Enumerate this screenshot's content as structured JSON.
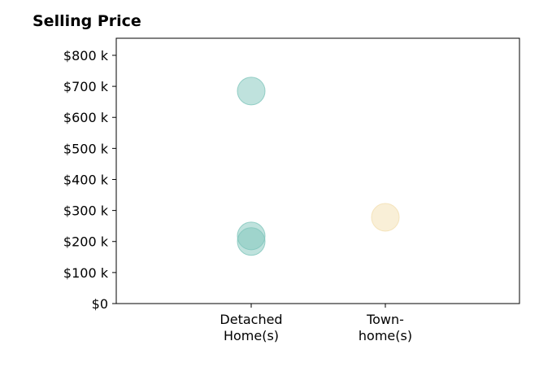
{
  "chart_data": {
    "type": "scatter",
    "title": "Selling Price",
    "xlabel": "",
    "ylabel": "",
    "categories": [
      [
        "Detached",
        "Home(s)"
      ],
      [
        "Town-",
        "home(s)"
      ]
    ],
    "y_ticks": [
      {
        "value": 0,
        "label": "$0"
      },
      {
        "value": 100000,
        "label": "$100 k"
      },
      {
        "value": 200000,
        "label": "$200 k"
      },
      {
        "value": 300000,
        "label": "$300 k"
      },
      {
        "value": 400000,
        "label": "$400 k"
      },
      {
        "value": 500000,
        "label": "$500 k"
      },
      {
        "value": 600000,
        "label": "$600 k"
      },
      {
        "value": 700000,
        "label": "$700 k"
      },
      {
        "value": 800000,
        "label": "$800 k"
      }
    ],
    "ylim": [
      0,
      855000
    ],
    "grid": false,
    "legend": "none",
    "points": [
      {
        "category": 0,
        "y": 685000,
        "color": "#80c6bc"
      },
      {
        "category": 0,
        "y": 218000,
        "color": "#80c6bc"
      },
      {
        "category": 0,
        "y": 200000,
        "color": "#80c6bc"
      },
      {
        "category": 1,
        "y": 278000,
        "color": "#f3dfb0"
      }
    ]
  }
}
